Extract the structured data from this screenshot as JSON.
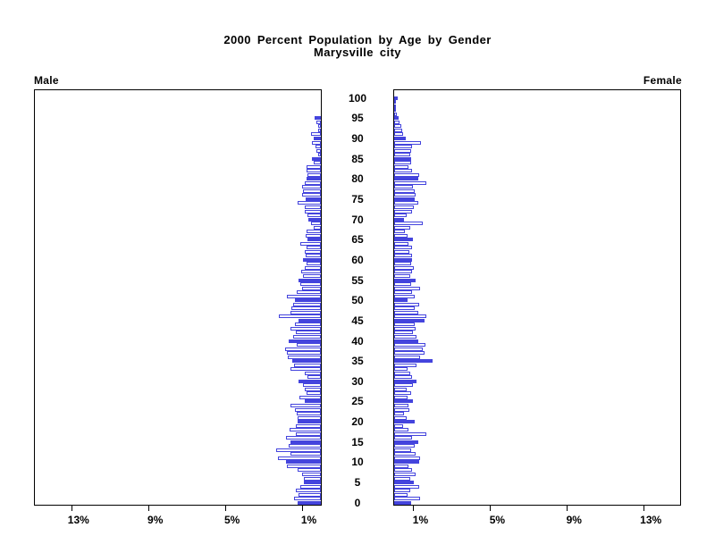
{
  "title": {
    "line1": "2000 Percent Population by Age by Gender",
    "line2": "Marysville city"
  },
  "panel_labels": {
    "male": "Male",
    "female": "Female"
  },
  "axis": {
    "age_tick_labels": [
      "0",
      "5",
      "10",
      "15",
      "20",
      "25",
      "30",
      "35",
      "40",
      "45",
      "50",
      "55",
      "60",
      "65",
      "70",
      "75",
      "80",
      "85",
      "90",
      "95",
      "100"
    ],
    "male_tick_values": [
      13,
      9,
      5,
      1
    ],
    "male_tick_labels": [
      "13%",
      "9%",
      "5%",
      "1%"
    ],
    "female_tick_values": [
      1,
      5,
      9,
      13
    ],
    "female_tick_labels": [
      "1%",
      "5%",
      "9%",
      "13%"
    ],
    "x_max_percent": 14.9
  },
  "colors": {
    "bar_blue": "#4444dd",
    "bar_empty_fill": "#ffffff",
    "frame": "#000000",
    "background": "#ffffff"
  },
  "chart_data": {
    "type": "bar",
    "variant": "population-pyramid",
    "title": "2000 Percent Population by Age by Gender",
    "subtitle": "Marysville city",
    "unit": "percent of total population",
    "age_min": 0,
    "age_max": 100,
    "age_step": 1,
    "filled_bar_age_multiple": 5,
    "x_axis": {
      "tick_values_percent": [
        1,
        5,
        9,
        13
      ],
      "max_percent": 14.9
    },
    "series": [
      {
        "name": "Male",
        "values": [
          1.2,
          1.4,
          1.15,
          1.3,
          1.05,
          0.87,
          0.9,
          1.0,
          1.2,
          1.76,
          1.82,
          2.25,
          1.6,
          2.33,
          1.7,
          1.57,
          1.82,
          1.29,
          1.62,
          1.32,
          1.21,
          1.21,
          1.26,
          1.33,
          1.59,
          0.83,
          1.14,
          0.76,
          0.86,
          0.91,
          1.17,
          0.71,
          0.83,
          1.59,
          1.39,
          1.47,
          1.74,
          1.77,
          1.85,
          1.26,
          1.67,
          1.44,
          1.29,
          1.59,
          1.36,
          1.18,
          2.17,
          1.59,
          1.56,
          1.44,
          1.36,
          1.77,
          1.26,
          0.98,
          1.06,
          1.17,
          0.91,
          1.02,
          0.86,
          0.76,
          0.95,
          0.8,
          0.83,
          0.76,
          1.06,
          0.68,
          0.8,
          0.76,
          0.36,
          0.53,
          0.64,
          0.71,
          0.86,
          0.83,
          1.21,
          0.8,
          1.0,
          0.94,
          0.98,
          0.83,
          0.73,
          0.68,
          0.73,
          0.73,
          0.38,
          0.48,
          0.15,
          0.22,
          0.27,
          0.48,
          0.38,
          0.53,
          0.14,
          0.15,
          0.22,
          0.33,
          0,
          0,
          0,
          0,
          0
        ]
      },
      {
        "name": "Female",
        "values": [
          0.9,
          1.33,
          0.68,
          0.83,
          1.29,
          1.03,
          0.83,
          1.14,
          0.91,
          0.73,
          1.29,
          1.33,
          1.14,
          0.88,
          1.06,
          1.24,
          0.91,
          1.67,
          0.76,
          0.48,
          1.09,
          0.64,
          0.53,
          0.79,
          0.76,
          0.98,
          0.68,
          0.88,
          0.64,
          0.98,
          1.15,
          0.91,
          0.83,
          0.68,
          1.18,
          2.0,
          1.36,
          1.59,
          1.48,
          1.64,
          1.26,
          1.18,
          0.98,
          1.14,
          1.06,
          1.59,
          1.67,
          1.24,
          1.09,
          1.29,
          0.68,
          1.06,
          0.94,
          1.33,
          0.88,
          1.14,
          0.83,
          0.95,
          1.03,
          0.88,
          0.94,
          0.95,
          0.79,
          0.91,
          0.73,
          0.98,
          0.68,
          0.58,
          0.83,
          1.47,
          0.53,
          0.64,
          0.91,
          1.02,
          1.24,
          1.09,
          1.14,
          1.05,
          0.98,
          1.67,
          1.24,
          1.29,
          0.91,
          0.73,
          0.88,
          0.9,
          0.85,
          0.9,
          0.92,
          1.38,
          0.61,
          0.48,
          0.42,
          0.38,
          0.27,
          0.21,
          0.12,
          0.09,
          0.05,
          0.11,
          0.2
        ]
      }
    ]
  }
}
